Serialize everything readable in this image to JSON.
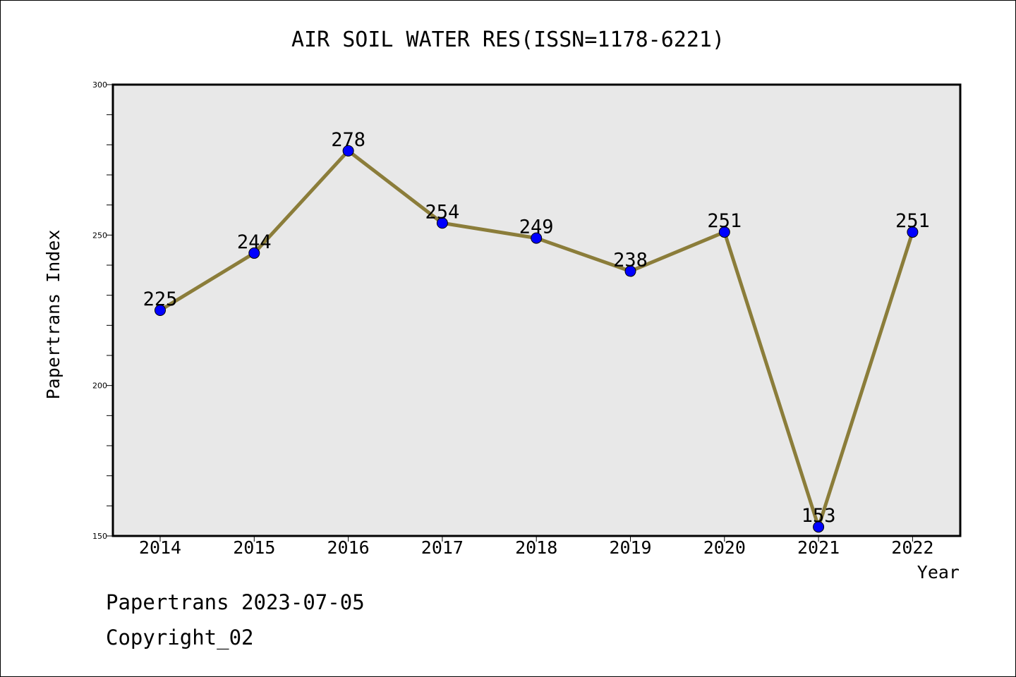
{
  "chart_data": {
    "type": "line",
    "title": "AIR SOIL WATER RES(ISSN=1178-6221)",
    "xlabel": "Year",
    "ylabel": "Papertrans Index",
    "categories": [
      "2014",
      "2015",
      "2016",
      "2017",
      "2018",
      "2019",
      "2020",
      "2021",
      "2022"
    ],
    "series": [
      {
        "values": [
          225,
          244,
          278,
          254,
          249,
          238,
          251,
          153,
          251
        ]
      }
    ],
    "data_labels": [
      "225",
      "244",
      "278",
      "254",
      "249",
      "238",
      "251",
      "153",
      "251"
    ],
    "ylim": [
      150,
      300
    ],
    "y_ticks": [
      150,
      200,
      250,
      300
    ],
    "y_tick_labels": [
      "150",
      "200",
      "250",
      "300"
    ],
    "grid": false,
    "line_color": "#8b7d3a",
    "marker_color": "#0000ff",
    "plot_background": "#e8e8e8"
  },
  "footer": {
    "line1": "Papertrans 2023-07-05",
    "line2": "Copyright_02"
  }
}
